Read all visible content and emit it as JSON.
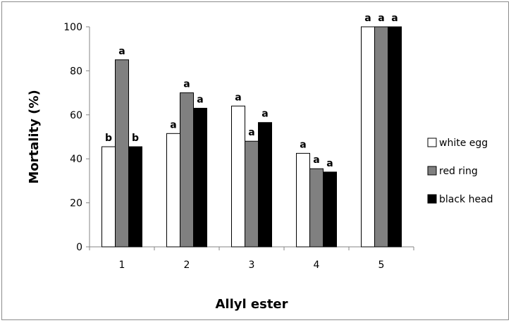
{
  "chart_data": {
    "type": "bar",
    "xlabel": "Allyl ester",
    "ylabel": "Mortality (%)",
    "ylim": [
      0,
      100
    ],
    "yticks": [
      0,
      20,
      40,
      60,
      80,
      100
    ],
    "categories": [
      "1",
      "2",
      "3",
      "4",
      "5"
    ],
    "grid": false,
    "legend_position": "right",
    "series": [
      {
        "name": "white egg",
        "color": "#ffffff",
        "values": [
          45.5,
          51.5,
          64,
          42.5,
          100
        ],
        "labels": [
          "b",
          "a",
          "a",
          "a",
          "a"
        ]
      },
      {
        "name": "red ring",
        "color": "#808080",
        "values": [
          85,
          70,
          48,
          35.5,
          100
        ],
        "labels": [
          "a",
          "a",
          "a",
          "a",
          "a"
        ]
      },
      {
        "name": "black head",
        "color": "#000000",
        "values": [
          45.5,
          63,
          56.5,
          34,
          100
        ],
        "labels": [
          "b",
          "a",
          "a",
          "a",
          "a"
        ]
      }
    ]
  }
}
